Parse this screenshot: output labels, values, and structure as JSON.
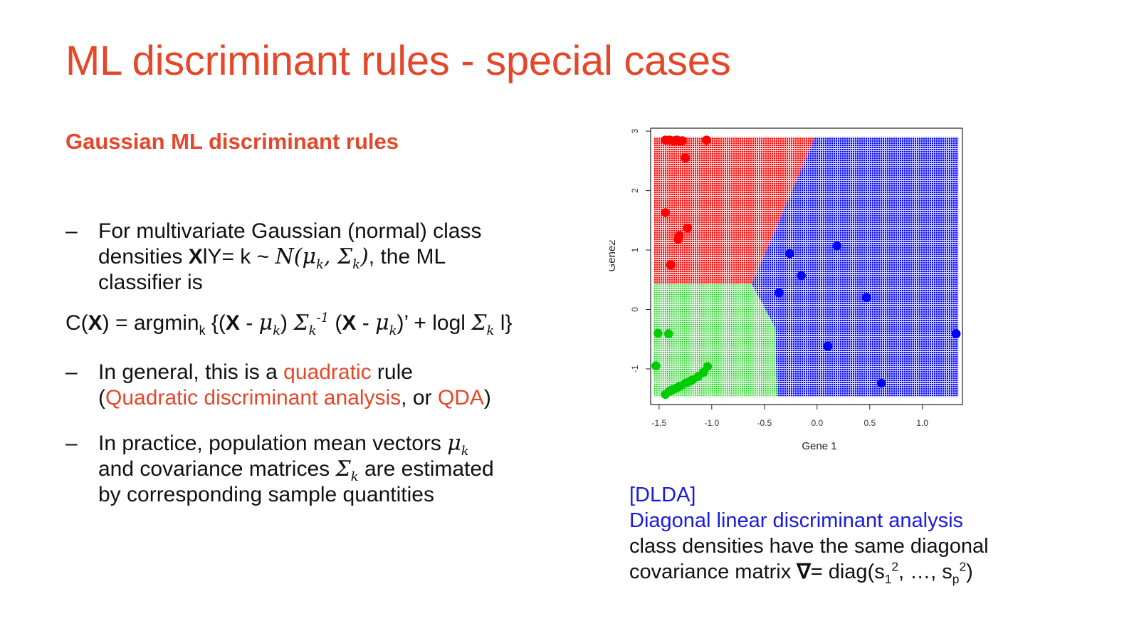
{
  "slide": {
    "title": "ML discriminant rules - special cases",
    "subtitle": "Gaussian ML discriminant rules",
    "bullet_marker": "–",
    "bullet1": {
      "line1": "For multivariate Gaussian (normal) class",
      "line2_a": "densities ",
      "line2_bold": "X",
      "line2_b": "lY= k ~ ",
      "line2_math": "N(μ",
      "line2_sub": "k",
      "line2_math2": ", Σ",
      "line2_sub2": "k",
      "line2_math3": ")",
      "line2_c": ", the ML",
      "line3": "classifier is"
    },
    "formula": {
      "p1": "C(",
      "bold_x": "X",
      "p2": ") = argmin",
      "sub_k": "k",
      "p3": " {(",
      "bold_x2": "X",
      "p4": " - ",
      "mu": "μ",
      "mu_sub": "k",
      "p5": ") ",
      "sigma": "Σ",
      "sigma_sub": "k",
      "sigma_sup": "-1",
      "p6": " (",
      "bold_x3": "X",
      "p7": " - ",
      "mu2": "μ",
      "mu2_sub": "k",
      "p8": ")’ + logl ",
      "sigma2": "Σ",
      "sigma2_sub": "k",
      "p9": " l}"
    },
    "bullet2": {
      "a": "In general, this is a ",
      "quadratic": "quadratic",
      "b": " rule",
      "c": "(",
      "qda_long": "Quadratic discriminant analysis",
      "d": ", or ",
      "qda": "QDA",
      "e": ")"
    },
    "bullet3": {
      "a": "In practice, population mean vectors ",
      "mu": "μ",
      "mu_sub": "k",
      "b": "and covariance matrices ",
      "sigma": "Σ",
      "sigma_sub": "k",
      "c": " are estimated",
      "d": "by corresponding sample quantities"
    },
    "caption": {
      "line1": "[DLDA]",
      "line2": "Diagonal linear discriminant analysis",
      "line3": "class densities have the same diagonal",
      "line4_a": "covariance matrix ",
      "nabla": "∇",
      "line4_b": "= diag(s",
      "s1_sub": "1",
      "s1_sup": "2",
      "line4_c": ", …, s",
      "sp_sub": "p",
      "sp_sup": "2",
      "line4_d": ")"
    },
    "colors": {
      "accent": "#e5472a",
      "caption_blue": "#1a1ae0"
    }
  },
  "chart_data": {
    "type": "scatter",
    "xlabel": "Gene 1",
    "ylabel": "Gene2",
    "xlim": [
      -1.58,
      1.38
    ],
    "ylim": [
      -1.6,
      3.05
    ],
    "xticks": [
      -1.5,
      -1.0,
      -0.5,
      0.0,
      0.5,
      1.0
    ],
    "xtick_labels": [
      "-1.5",
      "-1.0",
      "-0.5",
      "0.0",
      "0.5",
      "1.0"
    ],
    "yticks": [
      -1,
      0,
      1,
      2,
      3
    ],
    "ytick_labels": [
      "-1",
      "0",
      "1",
      "2",
      "3"
    ],
    "regions": [
      {
        "name": "red",
        "color": "#ff0000",
        "polygon": [
          [
            -1.55,
            0.43
          ],
          [
            -1.55,
            2.9
          ],
          [
            -0.02,
            2.9
          ],
          [
            -0.62,
            0.43
          ]
        ]
      },
      {
        "name": "green",
        "color": "#00cc00",
        "polygon": [
          [
            -1.55,
            -1.47
          ],
          [
            -1.55,
            0.43
          ],
          [
            -0.62,
            0.43
          ],
          [
            -0.4,
            -0.3
          ],
          [
            -0.38,
            -1.47
          ]
        ]
      },
      {
        "name": "blue",
        "color": "#0000ff",
        "polygon": [
          [
            -0.02,
            2.9
          ],
          [
            1.34,
            2.9
          ],
          [
            1.34,
            -1.47
          ],
          [
            -0.38,
            -1.47
          ],
          [
            -0.4,
            -0.3
          ],
          [
            -0.62,
            0.43
          ]
        ]
      }
    ],
    "series": [
      {
        "color": "#ff0000",
        "x": [
          -1.44,
          -1.4,
          -1.36,
          -1.33,
          -1.3,
          -1.28,
          -1.05,
          -1.25,
          -1.44,
          -1.23,
          -1.31,
          -1.32,
          -1.39
        ],
        "y": [
          2.85,
          2.85,
          2.84,
          2.85,
          2.83,
          2.84,
          2.85,
          2.55,
          1.63,
          1.37,
          1.24,
          1.18,
          0.75
        ]
      },
      {
        "color": "#00cc00",
        "x": [
          -1.51,
          -1.41,
          -1.53,
          -1.44,
          -1.4,
          -1.37,
          -1.33,
          -1.3,
          -1.25,
          -1.21,
          -1.18,
          -1.13,
          -1.08,
          -1.04
        ],
        "y": [
          -0.4,
          -0.41,
          -0.95,
          -1.43,
          -1.38,
          -1.35,
          -1.32,
          -1.29,
          -1.24,
          -1.21,
          -1.18,
          -1.13,
          -1.06,
          -0.96
        ]
      },
      {
        "color": "#0000ff",
        "x": [
          -0.26,
          0.19,
          -0.15,
          -0.36,
          0.47,
          0.1,
          0.61,
          1.32
        ],
        "y": [
          0.94,
          1.07,
          0.57,
          0.28,
          0.2,
          -0.62,
          -1.24,
          -0.41
        ]
      }
    ],
    "grid": false,
    "legend": "none"
  }
}
